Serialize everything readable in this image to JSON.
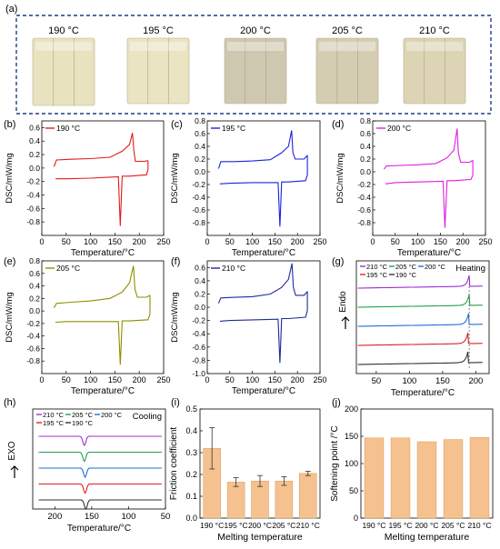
{
  "panel_labels": {
    "a": "(a)",
    "b": "(b)",
    "c": "(c)",
    "d": "(d)",
    "e": "(e)",
    "f": "(f)",
    "g": "(g)",
    "h": "(h)",
    "i": "(i)",
    "j": "(j)"
  },
  "photos": [
    {
      "label": "190 °C",
      "tone": "#e8e2bf"
    },
    {
      "label": "195 °C",
      "tone": "#eae4c2"
    },
    {
      "label": "200 °C",
      "tone": "#cfc8b0"
    },
    {
      "label": "205 °C",
      "tone": "#d4cdb2"
    },
    {
      "label": "210 °C",
      "tone": "#dcd4b4"
    }
  ],
  "photo_border_color": "#1f3c8c",
  "dsc_ylabel": "DSC/mW/mg",
  "dsc_xlabel": "Temperature/°C",
  "endo_label": "Endo",
  "exo_label": "EXO",
  "heating_label": "Heating",
  "cooling_label": "Cooling",
  "chart_data": [
    {
      "panel": "b",
      "type": "line",
      "legend": "190 °C",
      "color": "#e01b1b",
      "xlim": [
        0,
        250
      ],
      "ylim": [
        -1.0,
        0.7
      ],
      "xticks": [
        0,
        50,
        100,
        150,
        200,
        250
      ],
      "yticks": [
        0.6,
        0.4,
        0.2,
        0.0,
        -0.2,
        -0.4,
        -0.6,
        -0.8
      ],
      "heating": [
        [
          25,
          0.02
        ],
        [
          30,
          0.12
        ],
        [
          60,
          0.13
        ],
        [
          100,
          0.14
        ],
        [
          140,
          0.16
        ],
        [
          165,
          0.25
        ],
        [
          180,
          0.35
        ],
        [
          186,
          0.52
        ],
        [
          189,
          0.25
        ],
        [
          192,
          0.1
        ],
        [
          210,
          0.1
        ],
        [
          218,
          0.11
        ]
      ],
      "cooling": [
        [
          218,
          -0.02
        ],
        [
          215,
          -0.1
        ],
        [
          180,
          -0.12
        ],
        [
          165,
          -0.12
        ],
        [
          161,
          -0.86
        ],
        [
          157,
          -0.13
        ],
        [
          100,
          -0.15
        ],
        [
          50,
          -0.16
        ],
        [
          28,
          -0.16
        ]
      ]
    },
    {
      "panel": "c",
      "type": "line",
      "legend": "195 °C",
      "color": "#1a24d8",
      "xlim": [
        0,
        250
      ],
      "ylim": [
        -1.0,
        0.8
      ],
      "xticks": [
        0,
        50,
        100,
        150,
        200,
        250
      ],
      "yticks": [
        0.8,
        0.6,
        0.4,
        0.2,
        0.0,
        -0.2,
        -0.4,
        -0.6,
        -0.8
      ],
      "heating": [
        [
          25,
          0.05
        ],
        [
          30,
          0.16
        ],
        [
          60,
          0.16
        ],
        [
          100,
          0.17
        ],
        [
          140,
          0.19
        ],
        [
          165,
          0.3
        ],
        [
          180,
          0.4
        ],
        [
          187,
          0.65
        ],
        [
          190,
          0.3
        ],
        [
          195,
          0.2
        ],
        [
          215,
          0.2
        ],
        [
          222,
          0.26
        ]
      ],
      "cooling": [
        [
          222,
          -0.05
        ],
        [
          218,
          -0.14
        ],
        [
          180,
          -0.16
        ],
        [
          165,
          -0.16
        ],
        [
          161,
          -0.86
        ],
        [
          157,
          -0.17
        ],
        [
          100,
          -0.17
        ],
        [
          50,
          -0.18
        ],
        [
          28,
          -0.19
        ]
      ]
    },
    {
      "panel": "d",
      "type": "line",
      "legend": "200 °C",
      "color": "#e01ee0",
      "xlim": [
        0,
        250
      ],
      "ylim": [
        -1.0,
        0.8
      ],
      "xticks": [
        0,
        50,
        100,
        150,
        200,
        250
      ],
      "yticks": [
        0.8,
        0.6,
        0.4,
        0.2,
        0.0,
        -0.2,
        -0.4,
        -0.6,
        -0.8
      ],
      "heating": [
        [
          25,
          0.04
        ],
        [
          30,
          0.09
        ],
        [
          60,
          0.1
        ],
        [
          100,
          0.11
        ],
        [
          140,
          0.13
        ],
        [
          165,
          0.22
        ],
        [
          180,
          0.34
        ],
        [
          187,
          0.68
        ],
        [
          190,
          0.3
        ],
        [
          195,
          0.15
        ],
        [
          215,
          0.15
        ],
        [
          222,
          0.18
        ]
      ],
      "cooling": [
        [
          222,
          -0.05
        ],
        [
          218,
          -0.12
        ],
        [
          180,
          -0.14
        ],
        [
          165,
          -0.14
        ],
        [
          160,
          -0.88
        ],
        [
          156,
          -0.15
        ],
        [
          100,
          -0.16
        ],
        [
          50,
          -0.17
        ],
        [
          28,
          -0.19
        ]
      ]
    },
    {
      "panel": "e",
      "type": "line",
      "legend": "205 °C",
      "color": "#8f8f00",
      "xlim": [
        0,
        250
      ],
      "ylim": [
        -1.0,
        0.8
      ],
      "xticks": [
        0,
        50,
        100,
        150,
        200,
        250
      ],
      "yticks": [
        0.8,
        0.6,
        0.4,
        0.2,
        0.0,
        -0.2,
        -0.4,
        -0.6,
        -0.8
      ],
      "heating": [
        [
          25,
          0.05
        ],
        [
          30,
          0.12
        ],
        [
          60,
          0.14
        ],
        [
          100,
          0.16
        ],
        [
          140,
          0.2
        ],
        [
          165,
          0.3
        ],
        [
          180,
          0.45
        ],
        [
          188,
          0.72
        ],
        [
          191,
          0.35
        ],
        [
          196,
          0.22
        ],
        [
          215,
          0.22
        ],
        [
          222,
          0.25
        ]
      ],
      "cooling": [
        [
          222,
          -0.05
        ],
        [
          218,
          -0.14
        ],
        [
          180,
          -0.16
        ],
        [
          165,
          -0.16
        ],
        [
          161,
          -0.86
        ],
        [
          157,
          -0.17
        ],
        [
          100,
          -0.17
        ],
        [
          50,
          -0.17
        ],
        [
          28,
          -0.18
        ]
      ]
    },
    {
      "panel": "f",
      "type": "line",
      "legend": "210 °C",
      "color": "#1f2a9e",
      "xlim": [
        0,
        250
      ],
      "ylim": [
        -1.0,
        0.7
      ],
      "xticks": [
        0,
        50,
        100,
        150,
        200,
        250
      ],
      "yticks": [
        0.6,
        0.4,
        0.2,
        0.0,
        -0.2,
        -0.4,
        -0.6,
        -0.8,
        -1.0
      ],
      "heating": [
        [
          25,
          0.06
        ],
        [
          30,
          0.14
        ],
        [
          60,
          0.15
        ],
        [
          100,
          0.16
        ],
        [
          140,
          0.2
        ],
        [
          165,
          0.3
        ],
        [
          180,
          0.42
        ],
        [
          188,
          0.66
        ],
        [
          191,
          0.3
        ],
        [
          196,
          0.18
        ],
        [
          215,
          0.18
        ],
        [
          222,
          0.24
        ]
      ],
      "cooling": [
        [
          222,
          -0.05
        ],
        [
          218,
          -0.15
        ],
        [
          180,
          -0.17
        ],
        [
          165,
          -0.17
        ],
        [
          161,
          -0.84
        ],
        [
          157,
          -0.18
        ],
        [
          100,
          -0.19
        ],
        [
          50,
          -0.2
        ],
        [
          28,
          -0.21
        ]
      ]
    },
    {
      "panel": "g",
      "type": "line",
      "title": "Heating",
      "xlim": [
        20,
        220
      ],
      "xticks": [
        50,
        100,
        150,
        200
      ],
      "series": [
        {
          "name": "210 °C",
          "color": "#9b2fd6",
          "offset": 4,
          "peak": 190
        },
        {
          "name": "205 °C",
          "color": "#22a04e",
          "offset": 3,
          "peak": 190
        },
        {
          "name": "200 °C",
          "color": "#1f6fd6",
          "offset": 2,
          "peak": 189
        },
        {
          "name": "195 °C",
          "color": "#e02020",
          "offset": 1,
          "peak": 188
        },
        {
          "name": "190 °C",
          "color": "#333333",
          "offset": 0,
          "peak": 188
        }
      ]
    },
    {
      "panel": "h",
      "type": "line",
      "title": "Cooling",
      "xlim": [
        230,
        50
      ],
      "xticks": [
        200,
        150,
        100,
        50
      ],
      "series": [
        {
          "name": "210 °C",
          "color": "#9b2fd6",
          "offset": 4,
          "peak": 160
        },
        {
          "name": "205 °C",
          "color": "#22a04e",
          "offset": 3,
          "peak": 160
        },
        {
          "name": "200 °C",
          "color": "#1f6fd6",
          "offset": 2,
          "peak": 159
        },
        {
          "name": "195 °C",
          "color": "#e02020",
          "offset": 1,
          "peak": 159
        },
        {
          "name": "190 °C",
          "color": "#333333",
          "offset": 0,
          "peak": 158
        }
      ]
    },
    {
      "panel": "i",
      "type": "bar",
      "categories": [
        "190 °C",
        "195 °C",
        "200 °C",
        "205 °C",
        "210 °C"
      ],
      "values": [
        0.32,
        0.165,
        0.17,
        0.17,
        0.205
      ],
      "errors": [
        0.095,
        0.02,
        0.025,
        0.02,
        0.01
      ],
      "ylim": [
        0,
        0.5
      ],
      "yticks": [
        0.0,
        0.1,
        0.2,
        0.3,
        0.4,
        0.5
      ],
      "xlabel": "Melting temperature",
      "ylabel": "Friction coefficient",
      "color": "#f5c28f"
    },
    {
      "panel": "j",
      "type": "bar",
      "categories": [
        "190 °C",
        "195 °C",
        "200 °C",
        "205 °C",
        "210 °C"
      ],
      "values": [
        147,
        147,
        140,
        144,
        148
      ],
      "ylim": [
        0,
        200
      ],
      "yticks": [
        0,
        50,
        100,
        150,
        200
      ],
      "xlabel": "Melting temperature",
      "ylabel": "Softening point /°C",
      "color": "#f5c28f"
    }
  ]
}
